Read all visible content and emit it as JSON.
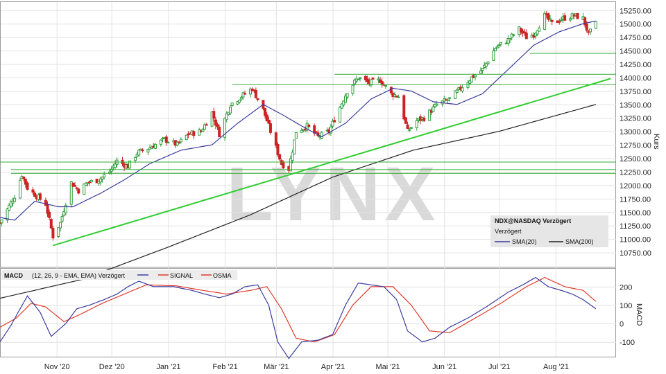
{
  "chart_data": [
    {
      "type": "candlestick",
      "watermark": "LYNX",
      "ylabel": "Kurs",
      "ylim": [
        10500,
        15350
      ],
      "yticks": [
        10750,
        11000,
        11250,
        11500,
        11750,
        12000,
        12250,
        12500,
        12750,
        13000,
        13250,
        13500,
        13750,
        14000,
        14250,
        14500,
        14750,
        15000,
        15250
      ],
      "ytick_labels": [
        "10750.00",
        "11000.00",
        "11250.00",
        "11500.00",
        "11750.00",
        "12000.00",
        "12250.00",
        "12500.00",
        "12750.00",
        "13000.00",
        "13250.00",
        "13500.00",
        "13750.00",
        "14000.00",
        "14250.00",
        "14500.00",
        "14750.00",
        "15000.00",
        "15250.00"
      ],
      "x_month_labels": [
        "Nov '20",
        "Dez '20",
        "Jan '21",
        "Feb '21",
        "Mär '21",
        "Apr '21",
        "Mai '21",
        "Jun '21",
        "Jul '21",
        "Aug '21"
      ],
      "x_month_label_dates": [
        "2020-11-01",
        "2020-12-01",
        "2021-01-01",
        "2021-02-01",
        "2021-03-01",
        "2021-04-01",
        "2021-05-01",
        "2021-06-01",
        "2021-07-01",
        "2021-08-01"
      ],
      "x_range": [
        "2020-10-01",
        "2021-08-31"
      ],
      "grid": true,
      "price_anchors": [
        {
          "date": "2020-10-01",
          "close": 11300
        },
        {
          "date": "2020-10-05",
          "close": 11550
        },
        {
          "date": "2020-10-09",
          "close": 11800
        },
        {
          "date": "2020-10-13",
          "close": 12200
        },
        {
          "date": "2020-10-16",
          "close": 11950
        },
        {
          "date": "2020-10-21",
          "close": 11800
        },
        {
          "date": "2020-10-26",
          "close": 11650
        },
        {
          "date": "2020-10-30",
          "close": 11050
        },
        {
          "date": "2020-11-03",
          "close": 11300
        },
        {
          "date": "2020-11-09",
          "close": 12050
        },
        {
          "date": "2020-11-13",
          "close": 11900
        },
        {
          "date": "2020-11-18",
          "close": 12050
        },
        {
          "date": "2020-11-24",
          "close": 12100
        },
        {
          "date": "2020-11-30",
          "close": 12250
        },
        {
          "date": "2020-12-04",
          "close": 12450
        },
        {
          "date": "2020-12-10",
          "close": 12350
        },
        {
          "date": "2020-12-15",
          "close": 12600
        },
        {
          "date": "2020-12-22",
          "close": 12700
        },
        {
          "date": "2020-12-30",
          "close": 12850
        },
        {
          "date": "2021-01-06",
          "close": 12750
        },
        {
          "date": "2021-01-12",
          "close": 12950
        },
        {
          "date": "2021-01-19",
          "close": 13000
        },
        {
          "date": "2021-01-25",
          "close": 13350
        },
        {
          "date": "2021-01-29",
          "close": 12950
        },
        {
          "date": "2021-02-04",
          "close": 13500
        },
        {
          "date": "2021-02-10",
          "close": 13650
        },
        {
          "date": "2021-02-16",
          "close": 13800
        },
        {
          "date": "2021-02-22",
          "close": 13400
        },
        {
          "date": "2021-02-26",
          "close": 13000
        },
        {
          "date": "2021-03-04",
          "close": 12400
        },
        {
          "date": "2021-03-08",
          "close": 12300
        },
        {
          "date": "2021-03-12",
          "close": 13000
        },
        {
          "date": "2021-03-18",
          "close": 13100
        },
        {
          "date": "2021-03-24",
          "close": 12900
        },
        {
          "date": "2021-03-30",
          "close": 13000
        },
        {
          "date": "2021-04-05",
          "close": 13450
        },
        {
          "date": "2021-04-09",
          "close": 13750
        },
        {
          "date": "2021-04-15",
          "close": 14000
        },
        {
          "date": "2021-04-21",
          "close": 13900
        },
        {
          "date": "2021-04-27",
          "close": 13950
        },
        {
          "date": "2021-05-03",
          "close": 13700
        },
        {
          "date": "2021-05-07",
          "close": 13650
        },
        {
          "date": "2021-05-12",
          "close": 13000
        },
        {
          "date": "2021-05-17",
          "close": 13200
        },
        {
          "date": "2021-05-21",
          "close": 13250
        },
        {
          "date": "2021-05-28",
          "close": 13500
        },
        {
          "date": "2021-06-04",
          "close": 13600
        },
        {
          "date": "2021-06-10",
          "close": 13800
        },
        {
          "date": "2021-06-16",
          "close": 14000
        },
        {
          "date": "2021-06-22",
          "close": 14150
        },
        {
          "date": "2021-06-29",
          "close": 14550
        },
        {
          "date": "2021-07-06",
          "close": 14700
        },
        {
          "date": "2021-07-12",
          "close": 14900
        },
        {
          "date": "2021-07-16",
          "close": 14750
        },
        {
          "date": "2021-07-20",
          "close": 14800
        },
        {
          "date": "2021-07-26",
          "close": 15150
        },
        {
          "date": "2021-07-30",
          "close": 15000
        },
        {
          "date": "2021-08-05",
          "close": 15100
        },
        {
          "date": "2021-08-11",
          "close": 15150
        },
        {
          "date": "2021-08-16",
          "close": 15100
        },
        {
          "date": "2021-08-19",
          "close": 14800
        },
        {
          "date": "2021-08-23",
          "close": 15000
        }
      ],
      "sma20_anchors": [
        {
          "date": "2020-10-01",
          "value": 11400
        },
        {
          "date": "2020-10-09",
          "value": 11350
        },
        {
          "date": "2020-10-20",
          "value": 11700
        },
        {
          "date": "2020-11-02",
          "value": 11600
        },
        {
          "date": "2020-11-10",
          "value": 11600
        },
        {
          "date": "2020-11-25",
          "value": 11850
        },
        {
          "date": "2020-12-08",
          "value": 12100
        },
        {
          "date": "2020-12-22",
          "value": 12400
        },
        {
          "date": "2021-01-08",
          "value": 12650
        },
        {
          "date": "2021-01-25",
          "value": 12750
        },
        {
          "date": "2021-02-08",
          "value": 13150
        },
        {
          "date": "2021-02-22",
          "value": 13500
        },
        {
          "date": "2021-03-05",
          "value": 13300
        },
        {
          "date": "2021-03-15",
          "value": 13100
        },
        {
          "date": "2021-03-26",
          "value": 12900
        },
        {
          "date": "2021-04-08",
          "value": 13150
        },
        {
          "date": "2021-04-22",
          "value": 13600
        },
        {
          "date": "2021-05-04",
          "value": 13800
        },
        {
          "date": "2021-05-14",
          "value": 13750
        },
        {
          "date": "2021-05-26",
          "value": 13550
        },
        {
          "date": "2021-06-08",
          "value": 13500
        },
        {
          "date": "2021-06-22",
          "value": 13700
        },
        {
          "date": "2021-07-06",
          "value": 14150
        },
        {
          "date": "2021-07-20",
          "value": 14600
        },
        {
          "date": "2021-08-03",
          "value": 14850
        },
        {
          "date": "2021-08-16",
          "value": 15000
        },
        {
          "date": "2021-08-23",
          "value": 15050
        }
      ],
      "sma200_anchors": [
        {
          "date": "2020-10-01",
          "value": 9900
        },
        {
          "date": "2020-11-15",
          "value": 10250
        },
        {
          "date": "2021-01-01",
          "value": 10850
        },
        {
          "date": "2021-02-15",
          "value": 11450
        },
        {
          "date": "2021-04-01",
          "value": 12150
        },
        {
          "date": "2021-05-15",
          "value": 12650
        },
        {
          "date": "2021-07-01",
          "value": 13000
        },
        {
          "date": "2021-08-23",
          "value": 13500
        }
      ],
      "horizontal_lines": [
        {
          "y": 14450,
          "from": "2021-07-18"
        },
        {
          "y": 14060,
          "from": "2021-04-02"
        },
        {
          "y": 13870,
          "from": "2021-02-05"
        },
        {
          "y": 12430,
          "from": "2020-10-01"
        },
        {
          "y": 12290,
          "from": "2020-10-07"
        },
        {
          "y": 12220,
          "from": "2020-10-07"
        }
      ],
      "trendline": {
        "from": {
          "date": "2020-10-30",
          "y": 10880
        },
        "to": {
          "date": "2021-08-31",
          "y": 13980
        }
      },
      "legend": {
        "symbol": "NDX@NASDAQ Verzögert",
        "subtitle": "Verzögert",
        "series": [
          "SMA(20)",
          "SMA(200)"
        ]
      },
      "colors": {
        "candle_up": "#2e9e3a",
        "candle_down": "#cc2222",
        "sma20": "#3a3c9e",
        "sma200": "#222222",
        "horizontal": "#33aa33",
        "trend": "#33cc33",
        "grid": "#e2e2e2"
      }
    },
    {
      "type": "line",
      "header": {
        "title": "MACD",
        "params": "(12, 26, 9 - EMA, EMA) Verzögert",
        "series": [
          "SIGNAL",
          "OSMA"
        ]
      },
      "ylabel": "MACD",
      "ylim": [
        -180,
        290
      ],
      "yticks": [
        -100,
        0,
        100,
        200
      ],
      "ytick_labels": [
        "-100",
        "0",
        "100",
        "200"
      ],
      "macd_anchors": [
        {
          "date": "2020-10-01",
          "value": -100
        },
        {
          "date": "2020-10-07",
          "value": -10
        },
        {
          "date": "2020-10-12",
          "value": 80
        },
        {
          "date": "2020-10-16",
          "value": 150
        },
        {
          "date": "2020-10-23",
          "value": 60
        },
        {
          "date": "2020-10-29",
          "value": -70
        },
        {
          "date": "2020-11-06",
          "value": 0
        },
        {
          "date": "2020-11-12",
          "value": 80
        },
        {
          "date": "2020-11-19",
          "value": 100
        },
        {
          "date": "2020-11-27",
          "value": 130
        },
        {
          "date": "2020-12-04",
          "value": 160
        },
        {
          "date": "2020-12-10",
          "value": 200
        },
        {
          "date": "2020-12-16",
          "value": 230
        },
        {
          "date": "2020-12-24",
          "value": 200
        },
        {
          "date": "2021-01-04",
          "value": 200
        },
        {
          "date": "2021-01-14",
          "value": 180
        },
        {
          "date": "2021-01-21",
          "value": 160
        },
        {
          "date": "2021-01-29",
          "value": 140
        },
        {
          "date": "2021-02-05",
          "value": 160
        },
        {
          "date": "2021-02-12",
          "value": 200
        },
        {
          "date": "2021-02-19",
          "value": 210
        },
        {
          "date": "2021-02-25",
          "value": 100
        },
        {
          "date": "2021-03-02",
          "value": -100
        },
        {
          "date": "2021-03-08",
          "value": -190
        },
        {
          "date": "2021-03-15",
          "value": -100
        },
        {
          "date": "2021-03-24",
          "value": -90
        },
        {
          "date": "2021-04-01",
          "value": -60
        },
        {
          "date": "2021-04-08",
          "value": 100
        },
        {
          "date": "2021-04-15",
          "value": 220
        },
        {
          "date": "2021-04-22",
          "value": 210
        },
        {
          "date": "2021-04-29",
          "value": 200
        },
        {
          "date": "2021-05-06",
          "value": 130
        },
        {
          "date": "2021-05-12",
          "value": -40
        },
        {
          "date": "2021-05-20",
          "value": -100
        },
        {
          "date": "2021-05-27",
          "value": -80
        },
        {
          "date": "2021-06-04",
          "value": -20
        },
        {
          "date": "2021-06-14",
          "value": 30
        },
        {
          "date": "2021-06-24",
          "value": 90
        },
        {
          "date": "2021-07-06",
          "value": 170
        },
        {
          "date": "2021-07-14",
          "value": 210
        },
        {
          "date": "2021-07-21",
          "value": 250
        },
        {
          "date": "2021-07-28",
          "value": 200
        },
        {
          "date": "2021-08-04",
          "value": 180
        },
        {
          "date": "2021-08-10",
          "value": 160
        },
        {
          "date": "2021-08-16",
          "value": 130
        },
        {
          "date": "2021-08-23",
          "value": 80
        }
      ],
      "signal_anchors": [
        {
          "date": "2020-10-01",
          "value": -20
        },
        {
          "date": "2020-10-10",
          "value": 30
        },
        {
          "date": "2020-10-18",
          "value": 110
        },
        {
          "date": "2020-10-26",
          "value": 90
        },
        {
          "date": "2020-11-05",
          "value": 10
        },
        {
          "date": "2020-11-14",
          "value": 50
        },
        {
          "date": "2020-11-26",
          "value": 110
        },
        {
          "date": "2020-12-08",
          "value": 160
        },
        {
          "date": "2020-12-20",
          "value": 210
        },
        {
          "date": "2021-01-05",
          "value": 205
        },
        {
          "date": "2021-01-20",
          "value": 180
        },
        {
          "date": "2021-02-02",
          "value": 160
        },
        {
          "date": "2021-02-15",
          "value": 180
        },
        {
          "date": "2021-02-24",
          "value": 200
        },
        {
          "date": "2021-03-04",
          "value": 80
        },
        {
          "date": "2021-03-12",
          "value": -80
        },
        {
          "date": "2021-03-22",
          "value": -100
        },
        {
          "date": "2021-04-02",
          "value": -60
        },
        {
          "date": "2021-04-12",
          "value": 100
        },
        {
          "date": "2021-04-22",
          "value": 200
        },
        {
          "date": "2021-05-04",
          "value": 200
        },
        {
          "date": "2021-05-14",
          "value": 100
        },
        {
          "date": "2021-05-24",
          "value": -40
        },
        {
          "date": "2021-06-04",
          "value": -50
        },
        {
          "date": "2021-06-18",
          "value": 30
        },
        {
          "date": "2021-07-02",
          "value": 110
        },
        {
          "date": "2021-07-16",
          "value": 200
        },
        {
          "date": "2021-07-26",
          "value": 250
        },
        {
          "date": "2021-08-06",
          "value": 200
        },
        {
          "date": "2021-08-16",
          "value": 180
        },
        {
          "date": "2021-08-23",
          "value": 120
        }
      ],
      "colors": {
        "macd": "#3a3c9e",
        "signal": "#e03a2a",
        "grid": "#e2e2e2"
      }
    }
  ]
}
